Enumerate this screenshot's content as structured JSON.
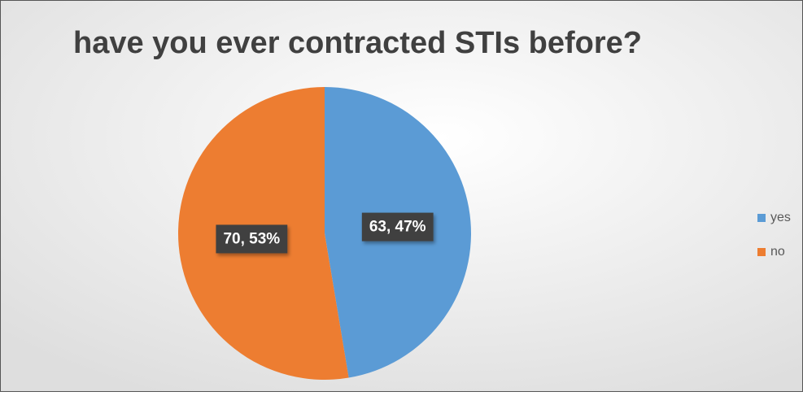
{
  "chart_data": {
    "type": "pie",
    "title": "have you ever contracted STIs before?",
    "categories": [
      "yes",
      "no"
    ],
    "values": [
      63,
      70
    ],
    "value_labels": [
      "63, 47%",
      "70, 53%"
    ],
    "colors": [
      "#5b9bd5",
      "#ed7d31"
    ],
    "legend": "right"
  }
}
